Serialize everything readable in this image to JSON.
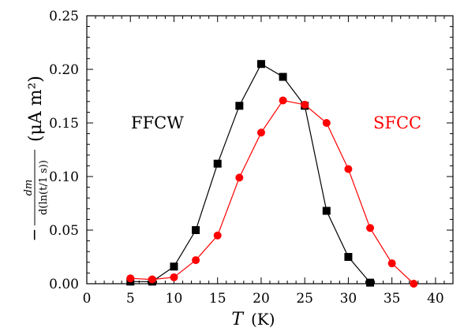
{
  "chart_data": {
    "type": "line",
    "xlabel_symbol": "T",
    "xlabel_unit": "(K)",
    "ylabel_fraction_numerator": "dm",
    "ylabel_fraction_denominator": "d(ln(t/1 s))",
    "ylabel_unit": "(μA m²)",
    "xlim": [
      0,
      42
    ],
    "ylim": [
      0,
      0.25
    ],
    "xticks": [
      0,
      5,
      10,
      15,
      20,
      25,
      30,
      35,
      40
    ],
    "yticks": [
      0.0,
      0.05,
      0.1,
      0.15,
      0.2,
      0.25
    ],
    "xtick_labels": [
      "0",
      "5",
      "10",
      "15",
      "20",
      "25",
      "30",
      "35",
      "40"
    ],
    "ytick_labels": [
      "0.00",
      "0.05",
      "0.10",
      "0.15",
      "0.20",
      "0.25"
    ],
    "grid": false,
    "series": [
      {
        "name": "FFCW",
        "color": "#000000",
        "marker": "square",
        "x": [
          5,
          7.5,
          10,
          12.5,
          15,
          17.5,
          20,
          22.5,
          25,
          27.5,
          30,
          32.5
        ],
        "y": [
          0.002,
          0.002,
          0.016,
          0.05,
          0.112,
          0.166,
          0.205,
          0.193,
          0.166,
          0.068,
          0.025,
          0.001
        ]
      },
      {
        "name": "SFCC",
        "color": "#ff0000",
        "marker": "circle",
        "x": [
          5,
          7.5,
          10,
          12.5,
          15,
          17.5,
          20,
          22.5,
          25,
          27.5,
          30,
          32.5,
          35,
          37.5
        ],
        "y": [
          0.005,
          0.004,
          0.006,
          0.022,
          0.045,
          0.099,
          0.141,
          0.171,
          0.167,
          0.15,
          0.107,
          0.052,
          0.019,
          0.0
        ]
      }
    ]
  }
}
